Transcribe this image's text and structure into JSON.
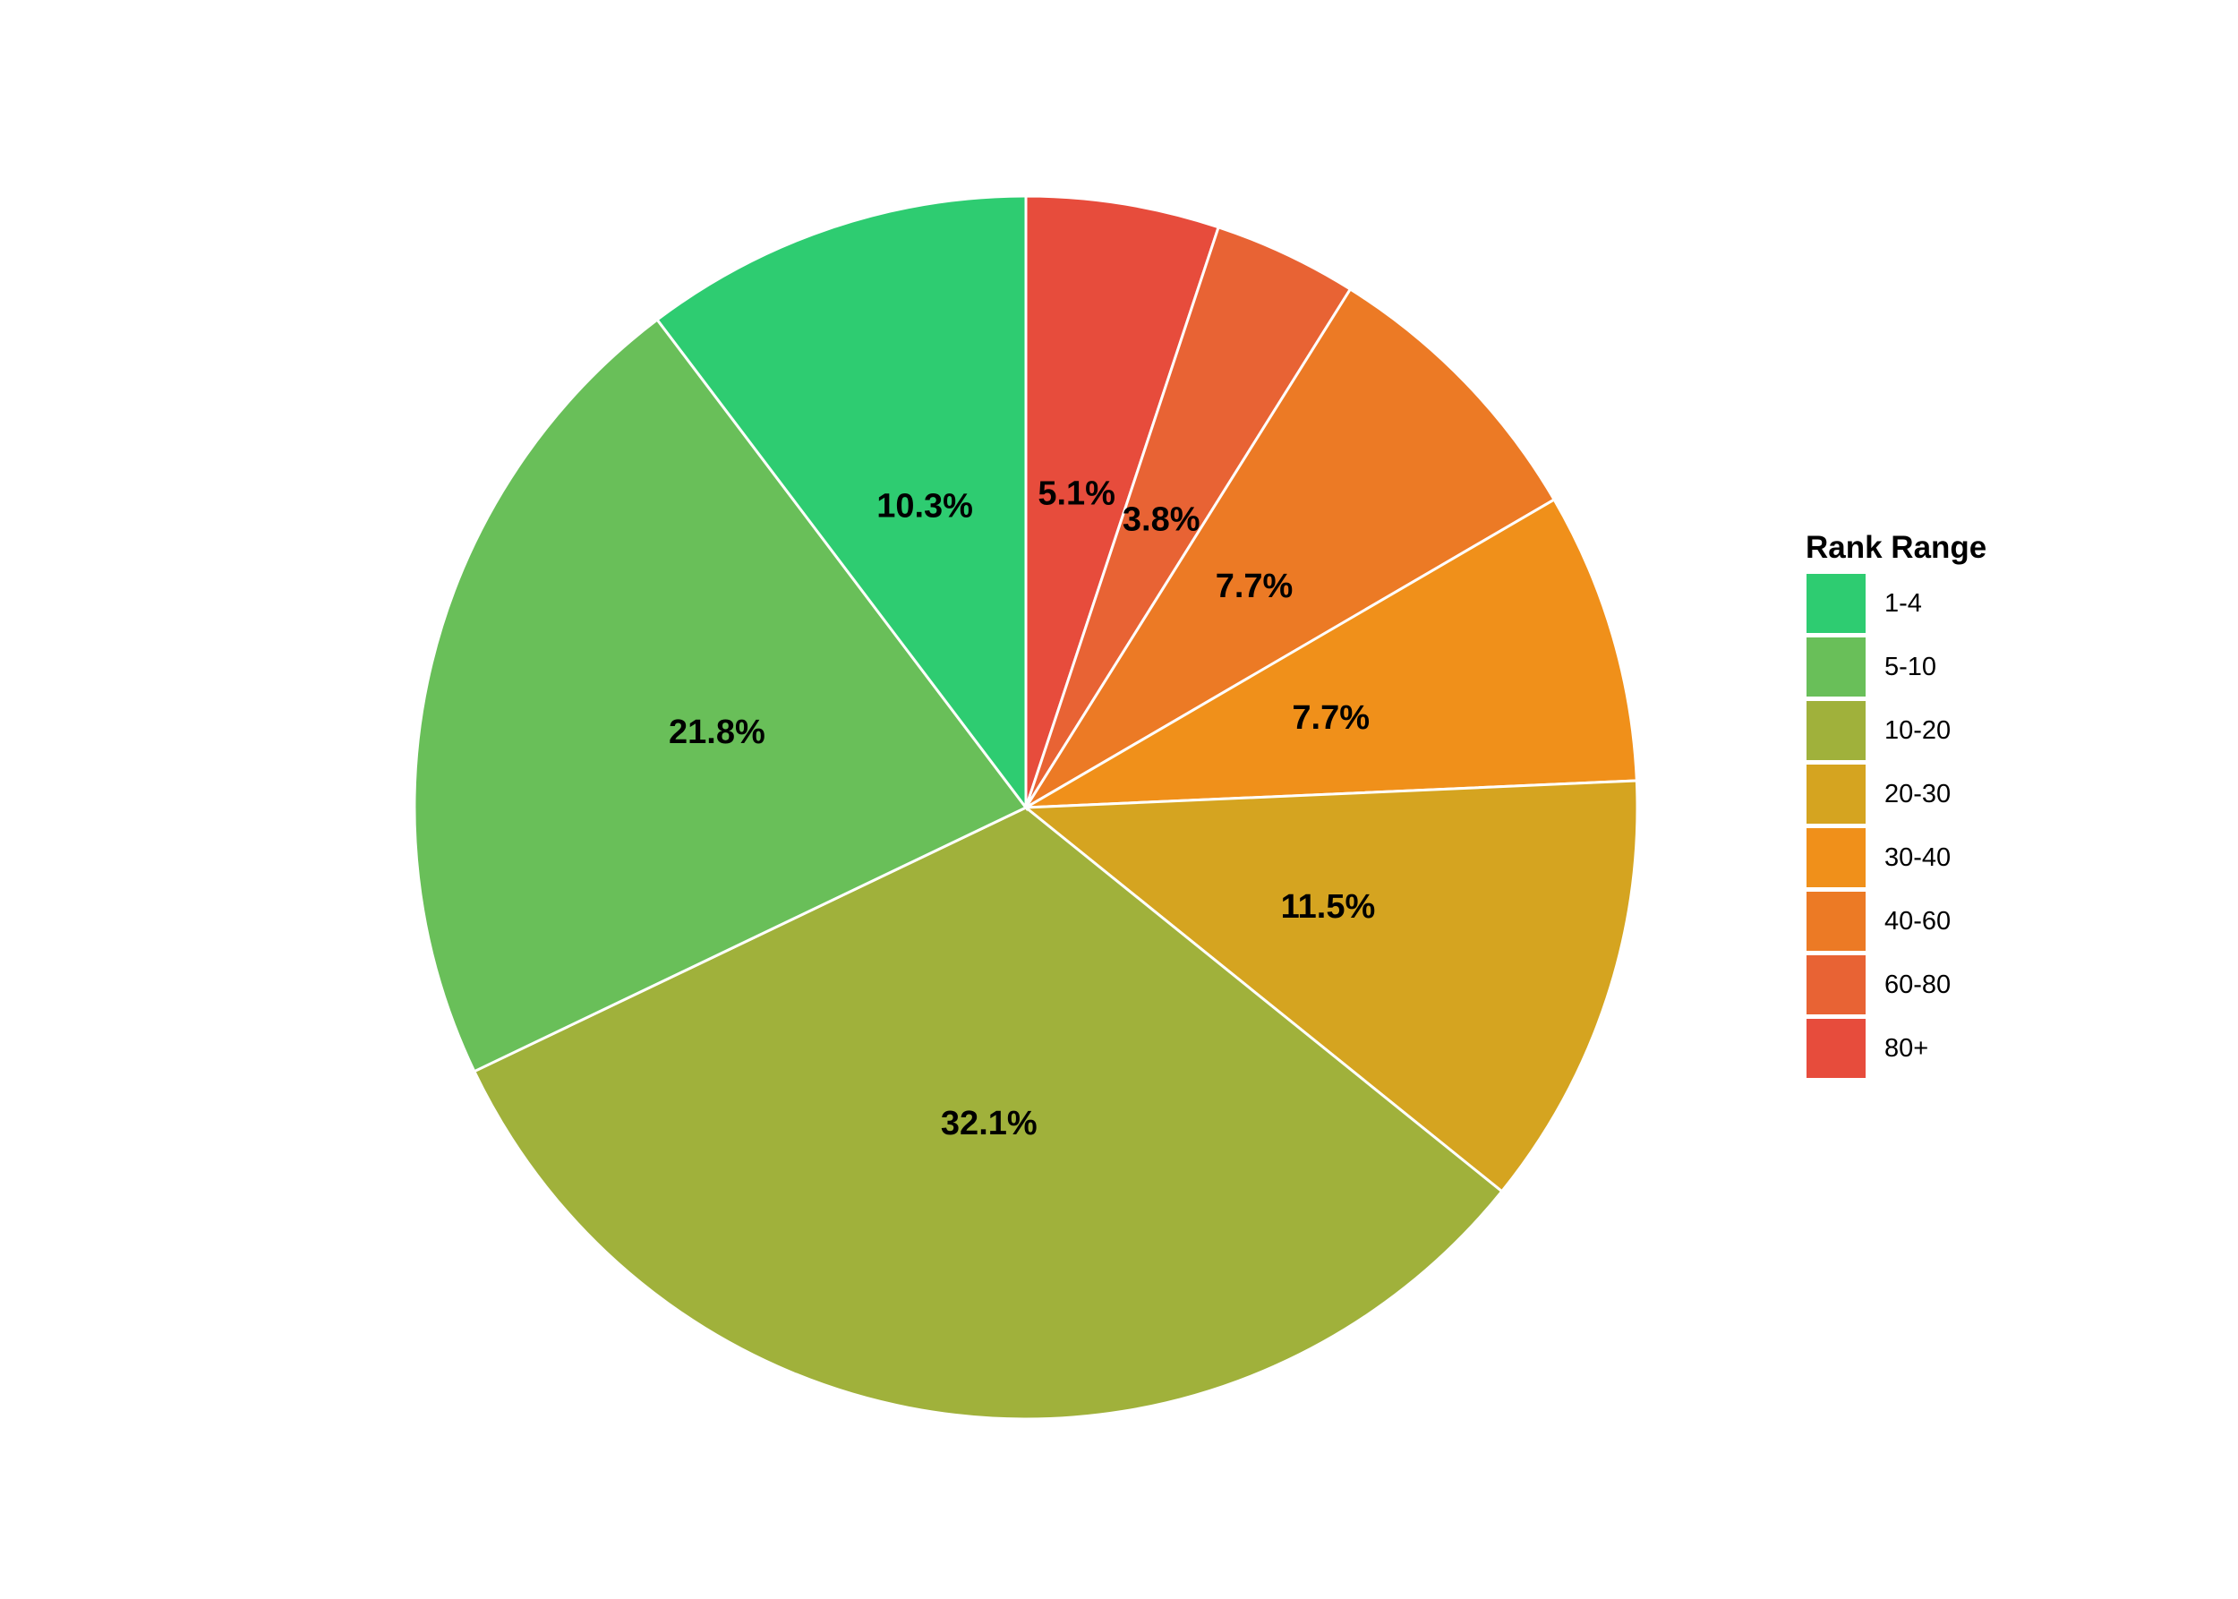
{
  "chart_data": {
    "type": "pie",
    "direction": "clockwise",
    "start": "12 o'clock",
    "slices": [
      {
        "label": "80+",
        "value": 5.1,
        "value_label": "5.1%",
        "color": "#E74C3C"
      },
      {
        "label": "60-80",
        "value": 3.8,
        "value_label": "3.8%",
        "color": "#E86334"
      },
      {
        "label": "40-60",
        "value": 7.7,
        "value_label": "7.7%",
        "color": "#EC7A25"
      },
      {
        "label": "30-40",
        "value": 7.7,
        "value_label": "7.7%",
        "color": "#F0901A"
      },
      {
        "label": "20-30",
        "value": 11.5,
        "value_label": "11.5%",
        "color": "#D5A420"
      },
      {
        "label": "10-20",
        "value": 32.1,
        "value_label": "32.1%",
        "color": "#A0B13B"
      },
      {
        "label": "5-10",
        "value": 21.8,
        "value_label": "21.8%",
        "color": "#69BF59"
      },
      {
        "label": "1-4",
        "value": 10.3,
        "value_label": "10.3%",
        "color": "#2ECC71"
      }
    ],
    "legend": {
      "title": "Rank Range",
      "placement": "right",
      "items": [
        {
          "label": "1-4",
          "color": "#2ECC71"
        },
        {
          "label": "5-10",
          "color": "#69BF59"
        },
        {
          "label": "10-20",
          "color": "#A0B13B"
        },
        {
          "label": "20-30",
          "color": "#D5A420"
        },
        {
          "label": "30-40",
          "color": "#F0901A"
        },
        {
          "label": "40-60",
          "color": "#EC7A25"
        },
        {
          "label": "60-80",
          "color": "#E86334"
        },
        {
          "label": "80+",
          "color": "#E74C3C"
        }
      ]
    },
    "slice_border_color": "#FFFFFF"
  }
}
